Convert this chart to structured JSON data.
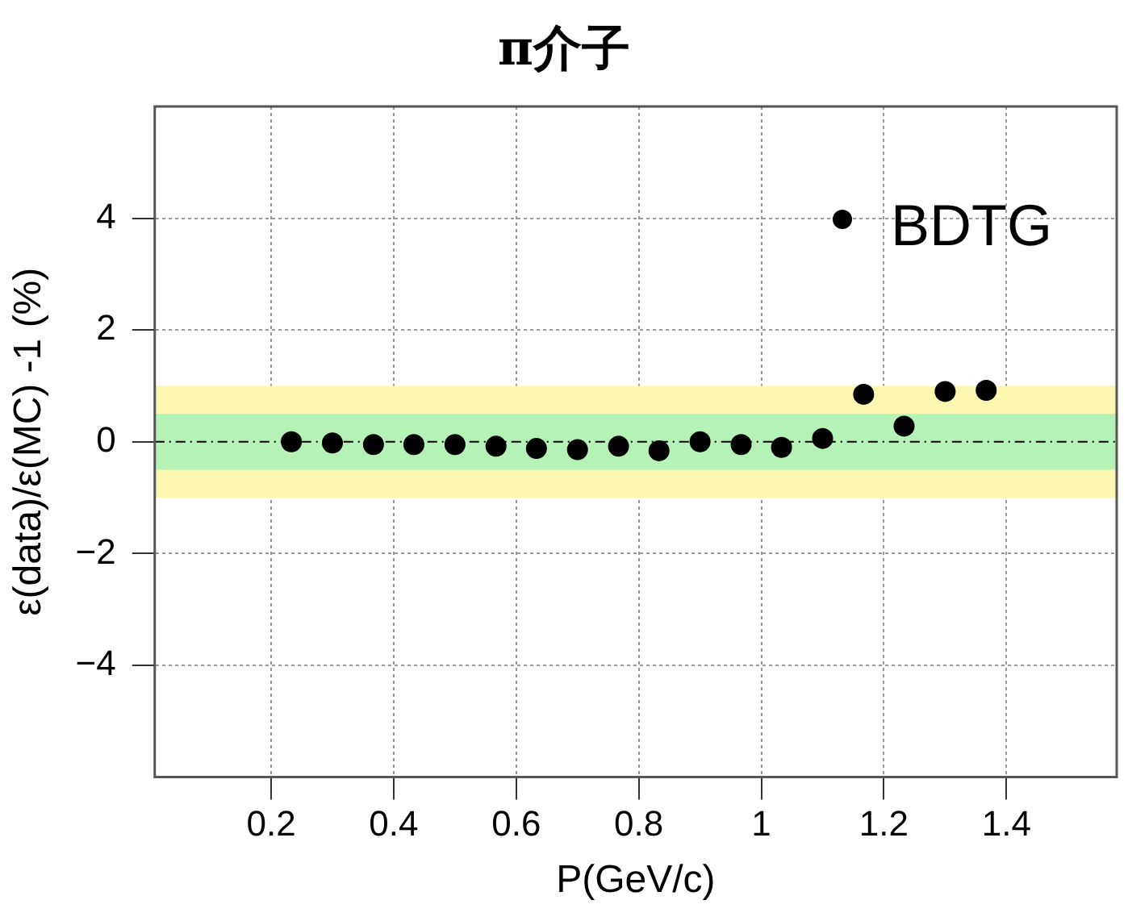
{
  "chart_data": {
    "type": "scatter",
    "title": "π介子",
    "xlabel": "P(GeV/c)",
    "ylabel": "ε(data)/ε(MC) -1 (%)",
    "xlim": [
      0.01,
      1.58
    ],
    "xticks": [
      0.2,
      0.4,
      0.6,
      0.8,
      1,
      1.2,
      1.4
    ],
    "ylim": [
      -6,
      6
    ],
    "yticks": [
      {
        "value": -4,
        "label": "−4"
      },
      {
        "value": -2,
        "label": "−2"
      },
      0,
      2,
      4
    ],
    "grid": true,
    "legend": "top right",
    "marker": "circle",
    "bands": [
      {
        "axis": "y",
        "from": -1,
        "to": 1,
        "color": "#fcf7b0"
      },
      {
        "axis": "y",
        "from": -0.5,
        "to": 0.5,
        "color": "#b5f2b5"
      }
    ],
    "ref_lines": [
      {
        "axis": "y",
        "value": 0,
        "color": "#000000",
        "line_style": "dashed"
      }
    ],
    "series": [
      {
        "name": "BDTG",
        "color": "#000000",
        "x": [
          0.233,
          0.3,
          0.367,
          0.433,
          0.5,
          0.567,
          0.633,
          0.7,
          0.767,
          0.833,
          0.9,
          0.967,
          1.033,
          1.1,
          1.167,
          1.233,
          1.3,
          1.367
        ],
        "values": [
          0,
          -0.02,
          -0.05,
          -0.05,
          -0.05,
          -0.08,
          -0.12,
          -0.14,
          -0.08,
          -0.16,
          0,
          -0.05,
          -0.1,
          0.06,
          0.85,
          0.28,
          0.9,
          0.92
        ]
      }
    ]
  }
}
